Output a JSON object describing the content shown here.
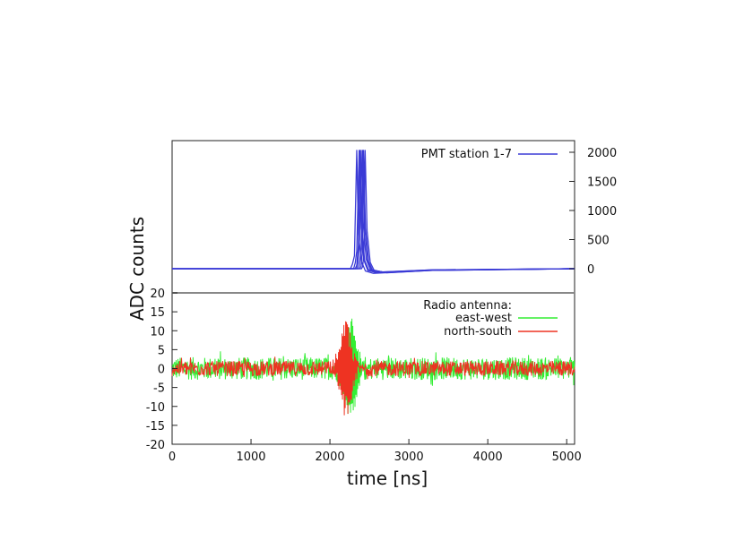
{
  "chart_data": [
    {
      "panel": "top",
      "type": "line",
      "ylabel": "ADC counts",
      "xlim": [
        0,
        5100
      ],
      "ylim": [
        -200,
        2050
      ],
      "y_axis_side": "right",
      "yticks": [
        0,
        500,
        1000,
        1500,
        2000
      ],
      "grid": false,
      "legend_placement": "top-right",
      "series": [
        {
          "name": "PMT station 1-7",
          "color": "#3b3bd6",
          "traces": [
            {
              "x": [
                0,
                2260,
                2285,
                2310,
                2340,
                2360,
                2400,
                2450,
                2550,
                3300,
                5100
              ],
              "y": [
                0,
                0,
                80,
                220,
                2040,
                600,
                120,
                -40,
                -80,
                -30,
                0
              ]
            },
            {
              "x": [
                0,
                2300,
                2320,
                2340,
                2370,
                2395,
                2430,
                2480,
                2600,
                3300,
                5100
              ],
              "y": [
                0,
                0,
                100,
                300,
                2040,
                700,
                150,
                -30,
                -70,
                -25,
                0
              ]
            },
            {
              "x": [
                0,
                2320,
                2340,
                2360,
                2380,
                2405,
                2440,
                2490,
                2620,
                3300,
                5100
              ],
              "y": [
                0,
                0,
                60,
                400,
                2040,
                650,
                140,
                -20,
                -60,
                -20,
                0
              ]
            },
            {
              "x": [
                0,
                2340,
                2355,
                2375,
                2395,
                2420,
                2460,
                2510,
                2650,
                3300,
                5100
              ],
              "y": [
                0,
                0,
                90,
                500,
                2040,
                800,
                160,
                -10,
                -55,
                -20,
                0
              ]
            },
            {
              "x": [
                0,
                2360,
                2375,
                2395,
                2415,
                2440,
                2480,
                2530,
                2680,
                3300,
                5100
              ],
              "y": [
                0,
                0,
                70,
                350,
                2040,
                750,
                130,
                -20,
                -60,
                -25,
                0
              ]
            },
            {
              "x": [
                0,
                2380,
                2395,
                2410,
                2425,
                2450,
                2490,
                2540,
                2700,
                3300,
                5100
              ],
              "y": [
                0,
                0,
                50,
                300,
                2040,
                700,
                120,
                -25,
                -65,
                -25,
                0
              ]
            },
            {
              "x": [
                0,
                2400,
                2415,
                2430,
                2445,
                2470,
                2510,
                2560,
                2720,
                3300,
                5100
              ],
              "y": [
                0,
                0,
                40,
                250,
                2040,
                650,
                110,
                -30,
                -70,
                -30,
                0
              ]
            }
          ]
        }
      ]
    },
    {
      "panel": "bottom",
      "type": "line",
      "xlabel": "time [ns]",
      "xlim": [
        0,
        5100
      ],
      "ylim": [
        -20,
        20
      ],
      "xticks": [
        0,
        1000,
        2000,
        3000,
        4000,
        5000
      ],
      "yticks": [
        -20,
        -15,
        -10,
        -5,
        0,
        5,
        10,
        15,
        20
      ],
      "grid": false,
      "legend_title": "Radio antenna:",
      "legend_placement": "top-right",
      "series": [
        {
          "name": "east-west",
          "color": "#33ee33",
          "noise_amplitude": 3,
          "pulse_center_x": 2260,
          "pulse_amplitude_min": -16,
          "pulse_amplitude_max": 14
        },
        {
          "name": "north-south",
          "color": "#ee3322",
          "noise_amplitude": 2,
          "pulse_center_x": 2200,
          "pulse_amplitude_min": -13,
          "pulse_amplitude_max": 13
        }
      ]
    }
  ]
}
